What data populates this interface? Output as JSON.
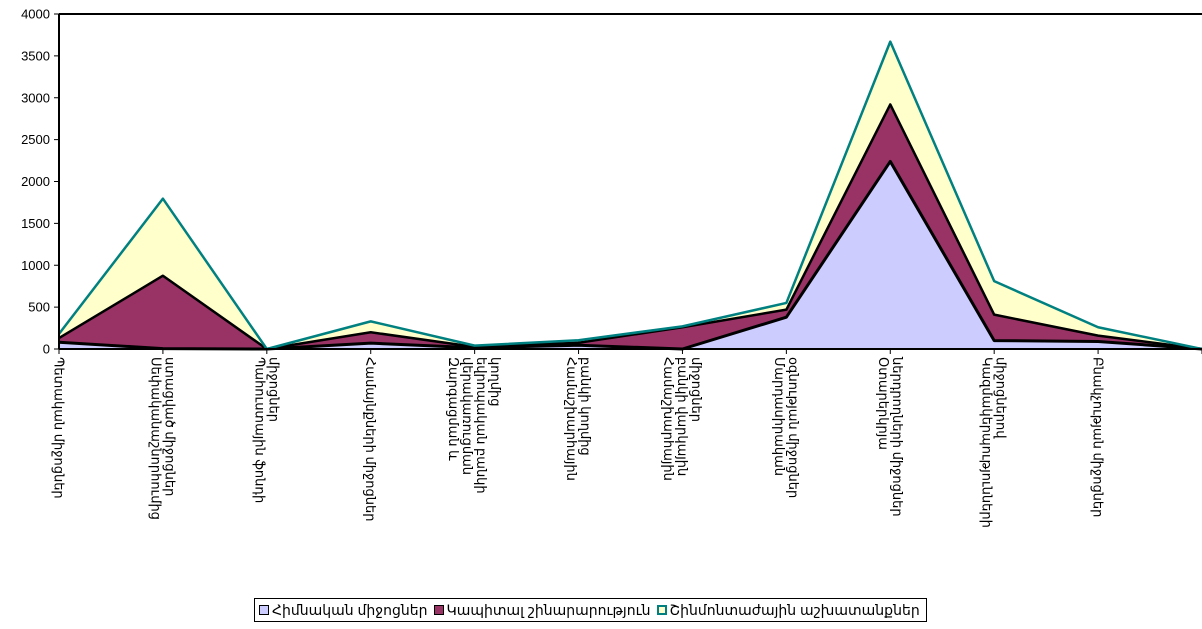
{
  "chart_data": {
    "type": "area",
    "stacked": true,
    "categories": [
      "Պետական միջոցներ",
      "Սեփականաշնորհումից ստացված միջոցներ",
      "Պահուստային ֆոնդի միջոցներ",
      "Համայնքների միջոցներ",
      "Զարգացման և վերակառուցման եվրոպական բանկի կողմից",
      "Համաշխարհային բանկի կողմից",
      "Համաշխարհային բանկի վարկային միջոցներ",
      "Մարդասիրական օգնության միջոցներ",
      "Օտարերկրյա ներդրողների միջոցներ",
      "Կազմակերպությունների միջոցներով",
      "Բնակչության միջոցներ",
      ""
    ],
    "category_label_lines": [
      [
        "Պետական միջոցներ"
      ],
      [
        "Սեփականաշնորհումից",
        "ստացված միջոցներ"
      ],
      [
        "Պահուստային ֆոնդի",
        "միջոցներ"
      ],
      [
        "Համայնքների միջոցներ"
      ],
      [
        "Զարգացման և",
        "վերակառուցման",
        "եվրոպական բանկի",
        "կողմից"
      ],
      [
        "Համաշխարհային",
        "բանկի կողմից"
      ],
      [
        "Համաշխարհային",
        "բանկի վարկային",
        "միջոցներ"
      ],
      [
        "Մարդասիրական",
        "օգնության միջոցներ"
      ],
      [
        "Օտարերկրյա",
        "ներդրողների միջոցներ"
      ],
      [
        "Կազմակերպությունների",
        "միջոցներով"
      ],
      [
        "Բնակչության միջոցներ"
      ],
      []
    ],
    "series": [
      {
        "name": "Հիմնական միջոցներ",
        "values": [
          80,
          5,
          0,
          70,
          15,
          45,
          0,
          380,
          2240,
          100,
          90,
          0
        ],
        "color": "#ccccff"
      },
      {
        "name": "Կապիտալ շինարարություն",
        "values": [
          50,
          870,
          0,
          130,
          10,
          30,
          260,
          90,
          680,
          310,
          70,
          0
        ],
        "color": "#993366"
      },
      {
        "name": "Շինմոնտաժային աշխատանքներ",
        "values": [
          50,
          920,
          0,
          130,
          15,
          30,
          10,
          80,
          750,
          400,
          100,
          0
        ],
        "color": "#ffffcc"
      }
    ],
    "edge_colors": [
      "#000000",
      "#000000",
      "#008080"
    ],
    "ylim": [
      0,
      4000
    ],
    "yticks": [
      0,
      500,
      1000,
      1500,
      2000,
      2500,
      3000,
      3500,
      4000
    ],
    "title": "",
    "xlabel": "",
    "ylabel": "",
    "legend_position": "bottom",
    "grid": false
  }
}
